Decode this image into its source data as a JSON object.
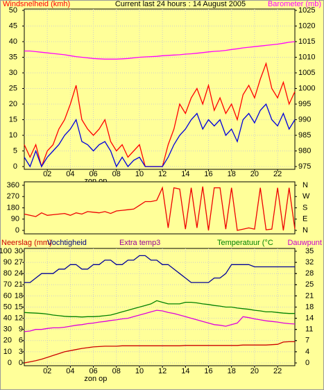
{
  "chart_data": [
    {
      "type": "line",
      "title": "Current last 24 hours : 14 August 2005",
      "axis_titles": [
        {
          "text": "Windsnelheid (kmh)",
          "color": "#ff0000"
        },
        {
          "text": "Barometer (mb)",
          "color": "#ff00ff"
        }
      ],
      "x": [
        0,
        0.5,
        1,
        1.5,
        2,
        2.5,
        3,
        3.5,
        4,
        4.5,
        5,
        5.5,
        6,
        6.5,
        7,
        7.5,
        8,
        8.5,
        9,
        9.5,
        10,
        10.5,
        11,
        11.5,
        12,
        12.5,
        13,
        13.5,
        14,
        14.5,
        15,
        15.5,
        16,
        16.5,
        17,
        17.5,
        18,
        18.5,
        19,
        19.5,
        20,
        20.5,
        21,
        21.5,
        22,
        22.5,
        23,
        23.5
      ],
      "series": [
        {
          "color": "#ff0000",
          "values": [
            7,
            3,
            7,
            0,
            5,
            7,
            12,
            15,
            20,
            26,
            15,
            12,
            10,
            12,
            15,
            8,
            5,
            7,
            3,
            5,
            7,
            0,
            0,
            0,
            0,
            7,
            12,
            20,
            17,
            22,
            25,
            20,
            26,
            18,
            22,
            17,
            20,
            15,
            23,
            26,
            22,
            28,
            33,
            25,
            22,
            27,
            20,
            24
          ]
        },
        {
          "color": "#0000dd",
          "values": [
            3,
            0,
            5,
            0,
            3,
            5,
            7,
            10,
            12,
            15,
            8,
            7,
            5,
            7,
            8,
            5,
            0,
            3,
            0,
            2,
            3,
            0,
            0,
            0,
            0,
            3,
            7,
            10,
            12,
            15,
            17,
            12,
            15,
            13,
            15,
            10,
            12,
            8,
            15,
            17,
            14,
            18,
            20,
            15,
            13,
            17,
            12,
            15
          ]
        },
        {
          "color": "#ff00ff",
          "axis": "y2",
          "values": [
            1012,
            1012,
            1011.8,
            1011.6,
            1011.4,
            1011.2,
            1011,
            1010.8,
            1010.5,
            1010.2,
            1010,
            1009.8,
            1009.6,
            1009.5,
            1009.4,
            1009.4,
            1009.4,
            1009.5,
            1009.6,
            1009.8,
            1010,
            1010.1,
            1010.2,
            1010.3,
            1010.5,
            1010.6,
            1010.7,
            1010.8,
            1011,
            1011.1,
            1011.3,
            1011.5,
            1011.7,
            1011.9,
            1012,
            1012.2,
            1012.5,
            1012.7,
            1013,
            1013.2,
            1013.4,
            1013.6,
            1013.8,
            1014,
            1014.2,
            1014.5,
            1014.8,
            1015
          ]
        }
      ],
      "xlim": [
        0,
        23.5
      ],
      "xticks": [
        {
          "value": 2,
          "label": "02"
        },
        {
          "value": 4,
          "label": "04"
        },
        {
          "value": 6,
          "label": "06"
        },
        {
          "value": 8,
          "label": "08"
        },
        {
          "value": 10,
          "label": "10"
        },
        {
          "value": 12,
          "label": "12"
        },
        {
          "value": 14,
          "label": "14"
        },
        {
          "value": 16,
          "label": "16"
        },
        {
          "value": 18,
          "label": "18"
        },
        {
          "value": 20,
          "label": "20"
        },
        {
          "value": 22,
          "label": "22"
        }
      ],
      "ylim": [
        0,
        50
      ],
      "yticks": [
        0,
        5,
        10,
        15,
        20,
        25,
        30,
        35,
        40,
        45,
        50
      ],
      "y2lim": [
        975,
        1025
      ],
      "y2ticks": [
        975,
        980,
        985,
        990,
        995,
        1000,
        1005,
        1010,
        1015,
        1020,
        1025
      ],
      "annotations": [
        {
          "text": "zon op",
          "x": 6.2
        }
      ],
      "grid": true
    },
    {
      "type": "line",
      "x": [
        0,
        0.5,
        1,
        1.5,
        2,
        2.5,
        3,
        3.5,
        4,
        4.5,
        5,
        5.5,
        6,
        6.5,
        7,
        7.5,
        8,
        8.5,
        9,
        9.5,
        10,
        10.5,
        11,
        11.5,
        12,
        12.5,
        13,
        13.5,
        14,
        14.5,
        15,
        15.5,
        16,
        16.5,
        17,
        17.5,
        18,
        18.5,
        19,
        19.5,
        20,
        20.5,
        21,
        21.5,
        22,
        22.5,
        23,
        23.5
      ],
      "series": [
        {
          "color": "#ee0000",
          "values": [
            130,
            120,
            110,
            140,
            120,
            125,
            130,
            135,
            120,
            140,
            130,
            150,
            145,
            140,
            150,
            135,
            155,
            160,
            165,
            170,
            200,
            230,
            230,
            240,
            340,
            20,
            340,
            330,
            10,
            340,
            20,
            350,
            0,
            340,
            340,
            10,
            340,
            0,
            10,
            20,
            10,
            340,
            5,
            10,
            340,
            0,
            340,
            10
          ]
        }
      ],
      "xlim": [
        0,
        23.5
      ],
      "ylim": [
        0,
        360
      ],
      "yticks": [
        0,
        90,
        180,
        270,
        360
      ],
      "y2lim": [
        0,
        360
      ],
      "y2ticks": [
        {
          "value": 0,
          "label": "N"
        },
        {
          "value": 90,
          "label": "E"
        },
        {
          "value": 180,
          "label": "S"
        },
        {
          "value": 270,
          "label": "W"
        },
        {
          "value": 360,
          "label": "N"
        }
      ]
    },
    {
      "type": "line",
      "axis_titles": [
        {
          "text": "Neerslag (mm)",
          "color": "#cc0000"
        },
        {
          "text": "Vochtigheid",
          "color": "#000080"
        },
        {
          "text": "Extra temp3",
          "color": "#990099"
        },
        {
          "text": "Temperatuur (°C",
          "color": "#008000"
        },
        {
          "text": "Dauwpunt",
          "color": "#cc00cc"
        }
      ],
      "x": [
        0,
        0.5,
        1,
        1.5,
        2,
        2.5,
        3,
        3.5,
        4,
        4.5,
        5,
        5.5,
        6,
        6.5,
        7,
        7.5,
        8,
        8.5,
        9,
        9.5,
        10,
        10.5,
        11,
        11.5,
        12,
        12.5,
        13,
        13.5,
        14,
        14.5,
        15,
        15.5,
        16,
        16.5,
        17,
        17.5,
        18,
        18.5,
        19,
        19.5,
        20,
        20.5,
        21,
        21.5,
        22,
        22.5,
        23,
        23.5
      ],
      "series": [
        {
          "color": "#000099",
          "values": [
            72,
            72,
            76,
            80,
            80,
            80,
            84,
            84,
            88,
            88,
            84,
            84,
            88,
            88,
            92,
            92,
            88,
            88,
            92,
            92,
            96,
            96,
            92,
            92,
            88,
            88,
            84,
            80,
            76,
            72,
            72,
            72,
            72,
            76,
            76,
            80,
            88,
            88,
            88,
            88,
            86,
            86,
            86,
            86,
            86,
            86,
            86,
            86
          ]
        },
        {
          "color": "#cc0000",
          "axis": "y3",
          "values": [
            0,
            0.3,
            0.6,
            1,
            1.5,
            2,
            2.5,
            3,
            3.3,
            3.6,
            3.9,
            4.1,
            4.3,
            4.4,
            4.5,
            4.5,
            4.5,
            4.6,
            4.6,
            4.6,
            4.6,
            4.6,
            4.6,
            4.6,
            4.6,
            4.6,
            4.6,
            4.6,
            4.7,
            4.7,
            4.7,
            4.7,
            4.7,
            4.7,
            4.7,
            4.7,
            4.7,
            4.7,
            4.8,
            4.8,
            4.8,
            4.8,
            4.8,
            4.9,
            5,
            5.6,
            5.7,
            5.7
          ]
        },
        {
          "color": "#008000",
          "axis": "y2",
          "values": [
            15.8,
            15.7,
            15.6,
            15.5,
            15.3,
            15,
            14.8,
            14.6,
            14.5,
            14.5,
            14.4,
            14.5,
            14.5,
            14.6,
            14.8,
            15,
            15.5,
            16,
            16.5,
            17,
            17.5,
            18,
            18.5,
            19.5,
            19,
            18.5,
            18.5,
            18.5,
            19,
            19,
            18.8,
            18.5,
            18.3,
            18,
            17.8,
            17.5,
            17.5,
            17.2,
            17,
            16.8,
            16.5,
            16.3,
            16,
            16,
            15.8,
            15.6,
            15.5,
            15.5
          ]
        },
        {
          "color": "#dd00dd",
          "axis": "y2",
          "values": [
            9.8,
            10,
            10.5,
            10.5,
            10.8,
            11,
            11,
            11.2,
            11.5,
            11.8,
            12,
            12.3,
            12.5,
            12.8,
            13,
            13.3,
            13.5,
            13.8,
            14,
            14.5,
            15,
            15.5,
            16,
            16.5,
            16.3,
            15.8,
            15.5,
            15,
            14.5,
            14,
            13.5,
            13,
            12.5,
            12,
            11.8,
            11.5,
            12,
            12.5,
            14.5,
            14.2,
            13.8,
            13.5,
            13.2,
            13,
            12.8,
            12.5,
            12.3,
            12.2
          ]
        }
      ],
      "xlim": [
        0,
        23.5
      ],
      "xticks": [
        {
          "value": 2,
          "label": "02"
        },
        {
          "value": 4,
          "label": "04"
        },
        {
          "value": 6,
          "label": "06"
        },
        {
          "value": 8,
          "label": "08"
        },
        {
          "value": 10,
          "label": "10"
        },
        {
          "value": 12,
          "label": "12"
        },
        {
          "value": 14,
          "label": "14"
        },
        {
          "value": 16,
          "label": "16"
        },
        {
          "value": 18,
          "label": "18"
        },
        {
          "value": 20,
          "label": "20"
        },
        {
          "value": 22,
          "label": "22"
        }
      ],
      "ylim": [
        0,
        100
      ],
      "yticks": [
        0,
        10,
        20,
        30,
        40,
        50,
        60,
        70,
        80,
        90,
        100
      ],
      "y3lim": [
        0,
        30
      ],
      "y3ticks": [
        0,
        3,
        6,
        9,
        12,
        15,
        18,
        21,
        24,
        27,
        30
      ],
      "y2lim": [
        0,
        35
      ],
      "y2ticks": [
        0,
        {
          "value": 3.5,
          "label": "4"
        },
        7,
        {
          "value": 10.5,
          "label": "11"
        },
        14,
        {
          "value": 17.5,
          "label": "18"
        },
        21,
        {
          "value": 24.5,
          "label": "25"
        },
        28,
        {
          "value": 31.5,
          "label": "32"
        },
        35
      ],
      "annotations": [
        {
          "text": "zon op",
          "x": 6.2
        }
      ],
      "grid": true
    }
  ]
}
